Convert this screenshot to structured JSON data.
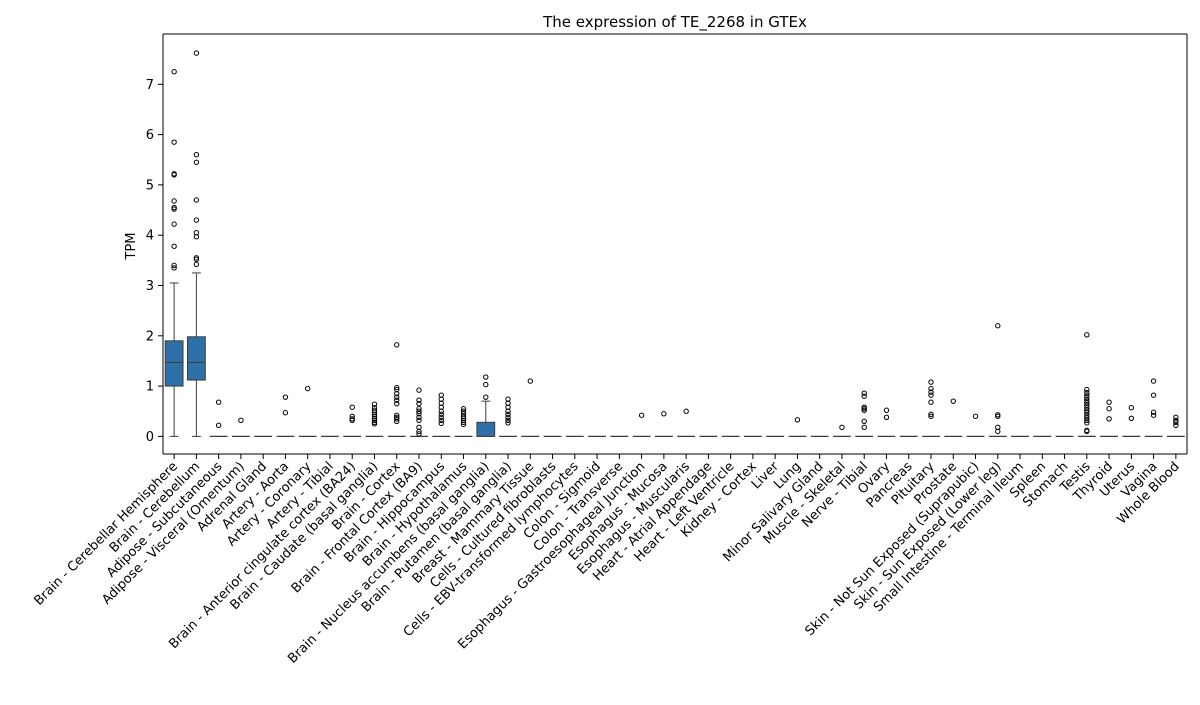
{
  "chart_data": {
    "type": "box",
    "title": "The expression of TE_2268 in GTEx",
    "xlabel": "",
    "ylabel": "TPM",
    "ylim": [
      -0.35,
      8.0
    ],
    "yticks": [
      0,
      1,
      2,
      3,
      4,
      5,
      6,
      7
    ],
    "grid": false,
    "legend": "none",
    "colors": {
      "box": "#2e70a8",
      "box_edge": "#3d3d3d",
      "outlier": "#000000"
    },
    "categories": [
      "Brain - Cerebellar Hemisphere",
      "Brain - Cerebellum",
      "Adipose - Subcutaneous",
      "Adipose - Visceral (Omentum)",
      "Adrenal Gland",
      "Artery - Aorta",
      "Artery - Coronary",
      "Artery - Tibial",
      "Brain - Anterior cingulate cortex (BA24)",
      "Brain - Caudate (basal ganglia)",
      "Brain - Cortex",
      "Brain - Frontal Cortex (BA9)",
      "Brain - Hippocampus",
      "Brain - Hypothalamus",
      "Brain - Nucleus accumbens (basal ganglia)",
      "Brain - Putamen (basal ganglia)",
      "Breast - Mammary Tissue",
      "Cells - Cultured fibroblasts",
      "Cells - EBV-transformed lymphocytes",
      "Colon - Sigmoid",
      "Colon - Transverse",
      "Esophagus - Gastroesophageal Junction",
      "Esophagus - Mucosa",
      "Esophagus - Muscularis",
      "Heart - Atrial Appendage",
      "Heart - Left Ventricle",
      "Kidney - Cortex",
      "Liver",
      "Lung",
      "Minor Salivary Gland",
      "Muscle - Skeletal",
      "Nerve - Tibial",
      "Ovary",
      "Pancreas",
      "Pituitary",
      "Prostate",
      "Skin - Not Sun Exposed (Suprapubic)",
      "Skin - Sun Exposed (Lower leg)",
      "Small Intestine - Terminal Ileum",
      "Spleen",
      "Stomach",
      "Testis",
      "Thyroid",
      "Uterus",
      "Vagina",
      "Whole Blood"
    ],
    "boxes": [
      {
        "q1": 1.0,
        "median": 1.47,
        "q3": 1.9,
        "whislo": 0.0,
        "whishi": 3.05,
        "fliers": [
          7.25,
          5.85,
          5.22,
          5.2,
          4.68,
          4.55,
          4.52,
          4.22,
          3.78,
          3.4,
          3.35
        ]
      },
      {
        "q1": 1.12,
        "median": 1.47,
        "q3": 1.98,
        "whislo": 0.0,
        "whishi": 3.25,
        "fliers": [
          7.62,
          5.6,
          5.45,
          4.7,
          4.3,
          4.05,
          3.97,
          3.55,
          3.52,
          3.42
        ]
      },
      {
        "q1": 0,
        "median": 0,
        "q3": 0,
        "whislo": 0,
        "whishi": 0,
        "fliers": [
          0.68,
          0.22
        ]
      },
      {
        "q1": 0,
        "median": 0,
        "q3": 0,
        "whislo": 0,
        "whishi": 0,
        "fliers": [
          0.32
        ]
      },
      {
        "q1": 0,
        "median": 0,
        "q3": 0,
        "whislo": 0,
        "whishi": 0,
        "fliers": []
      },
      {
        "q1": 0,
        "median": 0,
        "q3": 0,
        "whislo": 0,
        "whishi": 0,
        "fliers": [
          0.78,
          0.47
        ]
      },
      {
        "q1": 0,
        "median": 0,
        "q3": 0,
        "whislo": 0,
        "whishi": 0,
        "fliers": [
          0.95
        ]
      },
      {
        "q1": 0,
        "median": 0,
        "q3": 0,
        "whislo": 0,
        "whishi": 0,
        "fliers": []
      },
      {
        "q1": 0,
        "median": 0,
        "q3": 0,
        "whislo": 0,
        "whishi": 0,
        "fliers": [
          0.58,
          0.4,
          0.35,
          0.32
        ]
      },
      {
        "q1": 0,
        "median": 0,
        "q3": 0,
        "whislo": 0,
        "whishi": 0,
        "fliers": [
          0.64,
          0.57,
          0.52,
          0.48,
          0.44,
          0.4,
          0.36,
          0.32,
          0.28,
          0.25
        ]
      },
      {
        "q1": 0,
        "median": 0,
        "q3": 0,
        "whislo": 0,
        "whishi": 0,
        "fliers": [
          1.82,
          0.97,
          0.93,
          0.85,
          0.78,
          0.72,
          0.65,
          0.42,
          0.38,
          0.35,
          0.3
        ]
      },
      {
        "q1": 0,
        "median": 0,
        "q3": 0,
        "whislo": 0,
        "whishi": 0,
        "fliers": [
          0.92,
          0.72,
          0.65,
          0.55,
          0.5,
          0.45,
          0.38,
          0.32,
          0.18,
          0.1,
          0.05
        ]
      },
      {
        "q1": 0,
        "median": 0,
        "q3": 0,
        "whislo": 0,
        "whishi": 0,
        "fliers": [
          0.82,
          0.74,
          0.66,
          0.58,
          0.5,
          0.44,
          0.38,
          0.32,
          0.26
        ]
      },
      {
        "q1": 0,
        "median": 0,
        "q3": 0,
        "whislo": 0,
        "whishi": 0,
        "fliers": [
          0.55,
          0.5,
          0.45,
          0.4,
          0.36,
          0.32,
          0.28,
          0.24
        ]
      },
      {
        "q1": 0,
        "median": 0,
        "q3": 0.28,
        "whislo": 0,
        "whishi": 0.7,
        "fliers": [
          1.18,
          1.03,
          0.78
        ]
      },
      {
        "q1": 0,
        "median": 0,
        "q3": 0,
        "whislo": 0,
        "whishi": 0,
        "fliers": [
          0.74,
          0.66,
          0.58,
          0.5,
          0.44,
          0.38,
          0.32,
          0.27
        ]
      },
      {
        "q1": 0,
        "median": 0,
        "q3": 0,
        "whislo": 0,
        "whishi": 0,
        "fliers": [
          1.1
        ]
      },
      {
        "q1": 0,
        "median": 0,
        "q3": 0,
        "whislo": 0,
        "whishi": 0,
        "fliers": []
      },
      {
        "q1": 0,
        "median": 0,
        "q3": 0,
        "whislo": 0,
        "whishi": 0,
        "fliers": []
      },
      {
        "q1": 0,
        "median": 0,
        "q3": 0,
        "whislo": 0,
        "whishi": 0,
        "fliers": []
      },
      {
        "q1": 0,
        "median": 0,
        "q3": 0,
        "whislo": 0,
        "whishi": 0,
        "fliers": []
      },
      {
        "q1": 0,
        "median": 0,
        "q3": 0,
        "whislo": 0,
        "whishi": 0,
        "fliers": [
          0.42
        ]
      },
      {
        "q1": 0,
        "median": 0,
        "q3": 0,
        "whislo": 0,
        "whishi": 0,
        "fliers": [
          0.45
        ]
      },
      {
        "q1": 0,
        "median": 0,
        "q3": 0,
        "whislo": 0,
        "whishi": 0,
        "fliers": [
          0.5
        ]
      },
      {
        "q1": 0,
        "median": 0,
        "q3": 0,
        "whislo": 0,
        "whishi": 0,
        "fliers": []
      },
      {
        "q1": 0,
        "median": 0,
        "q3": 0,
        "whislo": 0,
        "whishi": 0,
        "fliers": []
      },
      {
        "q1": 0,
        "median": 0,
        "q3": 0,
        "whislo": 0,
        "whishi": 0,
        "fliers": []
      },
      {
        "q1": 0,
        "median": 0,
        "q3": 0,
        "whislo": 0,
        "whishi": 0,
        "fliers": []
      },
      {
        "q1": 0,
        "median": 0,
        "q3": 0,
        "whislo": 0,
        "whishi": 0,
        "fliers": [
          0.33
        ]
      },
      {
        "q1": 0,
        "median": 0,
        "q3": 0,
        "whislo": 0,
        "whishi": 0,
        "fliers": []
      },
      {
        "q1": 0,
        "median": 0,
        "q3": 0,
        "whislo": 0,
        "whishi": 0,
        "fliers": [
          0.18
        ]
      },
      {
        "q1": 0,
        "median": 0,
        "q3": 0,
        "whislo": 0,
        "whishi": 0,
        "fliers": [
          0.86,
          0.8,
          0.58,
          0.55,
          0.52,
          0.3,
          0.18
        ]
      },
      {
        "q1": 0,
        "median": 0,
        "q3": 0,
        "whislo": 0,
        "whishi": 0,
        "fliers": [
          0.52,
          0.38
        ]
      },
      {
        "q1": 0,
        "median": 0,
        "q3": 0,
        "whislo": 0,
        "whishi": 0,
        "fliers": []
      },
      {
        "q1": 0,
        "median": 0,
        "q3": 0,
        "whislo": 0,
        "whishi": 0,
        "fliers": [
          1.08,
          0.95,
          0.88,
          0.82,
          0.68,
          0.44,
          0.4
        ]
      },
      {
        "q1": 0,
        "median": 0,
        "q3": 0,
        "whislo": 0,
        "whishi": 0,
        "fliers": [
          0.7
        ]
      },
      {
        "q1": 0,
        "median": 0,
        "q3": 0,
        "whislo": 0,
        "whishi": 0,
        "fliers": [
          0.4
        ]
      },
      {
        "q1": 0,
        "median": 0,
        "q3": 0,
        "whislo": 0,
        "whishi": 0,
        "fliers": [
          2.2,
          0.43,
          0.4,
          0.18,
          0.1
        ]
      },
      {
        "q1": 0,
        "median": 0,
        "q3": 0,
        "whislo": 0,
        "whishi": 0,
        "fliers": []
      },
      {
        "q1": 0,
        "median": 0,
        "q3": 0,
        "whislo": 0,
        "whishi": 0,
        "fliers": []
      },
      {
        "q1": 0,
        "median": 0,
        "q3": 0,
        "whislo": 0,
        "whishi": 0,
        "fliers": []
      },
      {
        "q1": 0,
        "median": 0,
        "q3": 0,
        "whislo": 0,
        "whishi": 0,
        "fliers": [
          2.02,
          0.93,
          0.87,
          0.82,
          0.77,
          0.72,
          0.67,
          0.62,
          0.57,
          0.52,
          0.47,
          0.42,
          0.37,
          0.32,
          0.27,
          0.12,
          0.1
        ]
      },
      {
        "q1": 0,
        "median": 0,
        "q3": 0,
        "whislo": 0,
        "whishi": 0,
        "fliers": [
          0.68,
          0.55,
          0.35
        ]
      },
      {
        "q1": 0,
        "median": 0,
        "q3": 0,
        "whislo": 0,
        "whishi": 0,
        "fliers": [
          0.57,
          0.36
        ]
      },
      {
        "q1": 0,
        "median": 0,
        "q3": 0,
        "whislo": 0,
        "whishi": 0,
        "fliers": [
          1.1,
          0.82,
          0.48,
          0.42
        ]
      },
      {
        "q1": 0,
        "median": 0,
        "q3": 0,
        "whislo": 0,
        "whishi": 0,
        "fliers": [
          0.38,
          0.32,
          0.28,
          0.22
        ]
      }
    ]
  }
}
